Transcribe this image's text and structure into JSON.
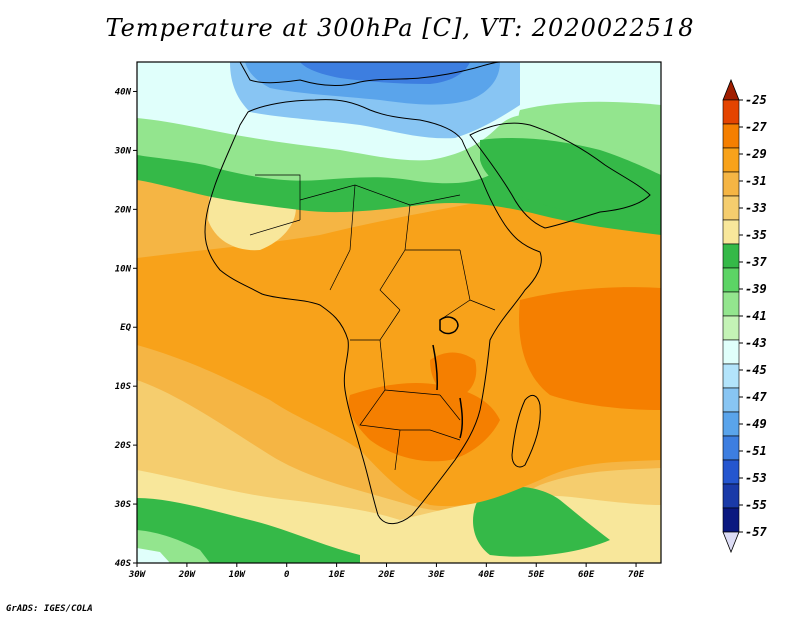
{
  "title": "Temperature at 300hPa [C], VT: 2020022518",
  "credit": "GrADS: IGES/COLA",
  "map": {
    "projection": "latlon",
    "lon_range": [
      -30,
      75
    ],
    "lat_range": [
      -40,
      45
    ],
    "y_ticks": [
      {
        "lat": 40,
        "label": "40N"
      },
      {
        "lat": 30,
        "label": "30N"
      },
      {
        "lat": 20,
        "label": "20N"
      },
      {
        "lat": 10,
        "label": "10N"
      },
      {
        "lat": 0,
        "label": "EQ"
      },
      {
        "lat": -10,
        "label": "10S"
      },
      {
        "lat": -20,
        "label": "20S"
      },
      {
        "lat": -30,
        "label": "30S"
      },
      {
        "lat": -40,
        "label": "40S"
      }
    ],
    "x_ticks": [
      {
        "lon": -30,
        "label": "30W"
      },
      {
        "lon": -20,
        "label": "20W"
      },
      {
        "lon": -10,
        "label": "10W"
      },
      {
        "lon": 0,
        "label": "0"
      },
      {
        "lon": 10,
        "label": "10E"
      },
      {
        "lon": 20,
        "label": "20E"
      },
      {
        "lon": 30,
        "label": "30E"
      },
      {
        "lon": 40,
        "label": "40E"
      },
      {
        "lon": 50,
        "label": "50E"
      },
      {
        "lon": 60,
        "label": "60E"
      },
      {
        "lon": 70,
        "label": "70E"
      }
    ]
  },
  "colorbar": {
    "labels": [
      "-25",
      "-27",
      "-29",
      "-31",
      "-33",
      "-35",
      "-37",
      "-39",
      "-41",
      "-43",
      "-45",
      "-47",
      "-49",
      "-51",
      "-53",
      "-55",
      "-57"
    ],
    "colors": [
      "#a01e00",
      "#e44400",
      "#f57f00",
      "#f8a21a",
      "#f5b544",
      "#f5cd6e",
      "#f8e79b",
      "#35b948",
      "#5cd465",
      "#93e58e",
      "#c4f3b6",
      "#e0fffb",
      "#b3e4fb",
      "#88c5f3",
      "#5aa4eb",
      "#3d7ee0",
      "#2556cf",
      "#1a3aa8",
      "#0a1880",
      "#dcdcf5"
    ]
  },
  "legend_colors": {
    "bg": "#f5b544",
    "warm": "#f8a21a",
    "hot": "#f57f00",
    "cool": "#f5cd6e",
    "mild": "#f8e79b",
    "green": "#35b948",
    "lgreen": "#93e58e",
    "cyan": "#e0fffb",
    "lblue": "#88c5f3",
    "blue": "#5aa4eb",
    "dblue": "#3d7ee0"
  }
}
